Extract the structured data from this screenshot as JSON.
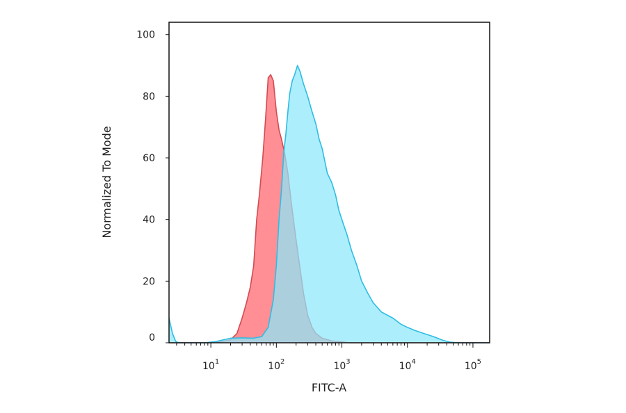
{
  "chart_data": {
    "type": "area",
    "xlabel": "FITC-A",
    "ylabel": "Normalized To Mode",
    "x_scale": "log",
    "xlim": [
      2.3,
      180000
    ],
    "ylim": [
      0,
      104
    ],
    "grid": false,
    "x_ticks": [
      {
        "base": "10",
        "exp": "1",
        "value": 10
      },
      {
        "base": "10",
        "exp": "2",
        "value": 100
      },
      {
        "base": "10",
        "exp": "3",
        "value": 1000
      },
      {
        "base": "10",
        "exp": "4",
        "value": 10000
      },
      {
        "base": "10",
        "exp": "5",
        "value": 100000
      }
    ],
    "y_ticks": [
      "0",
      "20",
      "40",
      "60",
      "80",
      "100"
    ],
    "series": [
      {
        "fill": "#ff8f94",
        "stroke": "#d24b52",
        "points": [
          [
            2.3,
            0
          ],
          [
            10,
            0
          ],
          [
            14,
            0.3
          ],
          [
            20,
            1
          ],
          [
            25,
            3
          ],
          [
            30,
            8
          ],
          [
            35,
            13
          ],
          [
            40,
            18
          ],
          [
            45,
            25
          ],
          [
            50,
            40
          ],
          [
            55,
            48
          ],
          [
            62,
            60
          ],
          [
            68,
            72
          ],
          [
            75,
            86
          ],
          [
            82,
            87
          ],
          [
            90,
            85
          ],
          [
            100,
            75
          ],
          [
            110,
            69
          ],
          [
            120,
            66
          ],
          [
            135,
            61
          ],
          [
            150,
            55
          ],
          [
            170,
            45
          ],
          [
            195,
            35
          ],
          [
            220,
            27
          ],
          [
            260,
            16
          ],
          [
            300,
            9
          ],
          [
            350,
            5
          ],
          [
            400,
            3
          ],
          [
            500,
            1.5
          ],
          [
            700,
            0.6
          ],
          [
            1000,
            0.3
          ],
          [
            1300,
            0
          ],
          [
            180000,
            0
          ]
        ]
      },
      {
        "fill": "#8ce8fb",
        "stroke": "#2fbce3",
        "points": [
          [
            2.3,
            8
          ],
          [
            2.6,
            3
          ],
          [
            2.9,
            0.5
          ],
          [
            3.2,
            0
          ],
          [
            8,
            0
          ],
          [
            12,
            0.4
          ],
          [
            20,
            1.5
          ],
          [
            30,
            1.6
          ],
          [
            45,
            1.5
          ],
          [
            60,
            2
          ],
          [
            75,
            5
          ],
          [
            90,
            14
          ],
          [
            100,
            25
          ],
          [
            110,
            40
          ],
          [
            120,
            50
          ],
          [
            130,
            62
          ],
          [
            140,
            68
          ],
          [
            150,
            75
          ],
          [
            160,
            81
          ],
          [
            175,
            85
          ],
          [
            190,
            87
          ],
          [
            210,
            90
          ],
          [
            230,
            88
          ],
          [
            260,
            84
          ],
          [
            300,
            80
          ],
          [
            350,
            75
          ],
          [
            400,
            71
          ],
          [
            450,
            66
          ],
          [
            500,
            63
          ],
          [
            560,
            58
          ],
          [
            600,
            55
          ],
          [
            700,
            52
          ],
          [
            800,
            48
          ],
          [
            900,
            43
          ],
          [
            1000,
            40
          ],
          [
            1200,
            35
          ],
          [
            1400,
            30
          ],
          [
            1700,
            25
          ],
          [
            2000,
            20
          ],
          [
            2500,
            16
          ],
          [
            3000,
            13
          ],
          [
            4000,
            10
          ],
          [
            6000,
            8
          ],
          [
            8000,
            6
          ],
          [
            10000,
            5
          ],
          [
            13000,
            4
          ],
          [
            18000,
            3
          ],
          [
            25000,
            2
          ],
          [
            35000,
            0.8
          ],
          [
            45000,
            0.2
          ],
          [
            60000,
            0
          ],
          [
            180000,
            0
          ]
        ]
      }
    ]
  }
}
